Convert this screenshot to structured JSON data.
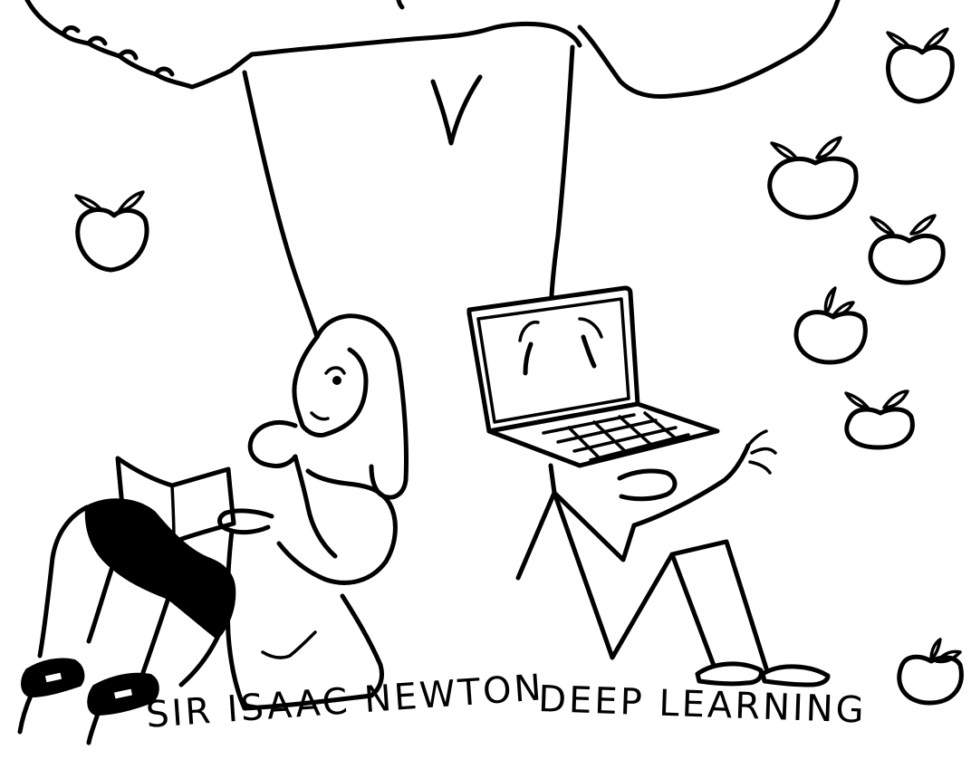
{
  "captions": {
    "left": "SIR ISAAC NEWTON",
    "right": "DEEP LEARNING"
  },
  "colors": {
    "ink": "#000000",
    "paper": "#ffffff"
  },
  "icons": {
    "apple": "apple-icon",
    "laptop": "laptop-icon"
  }
}
